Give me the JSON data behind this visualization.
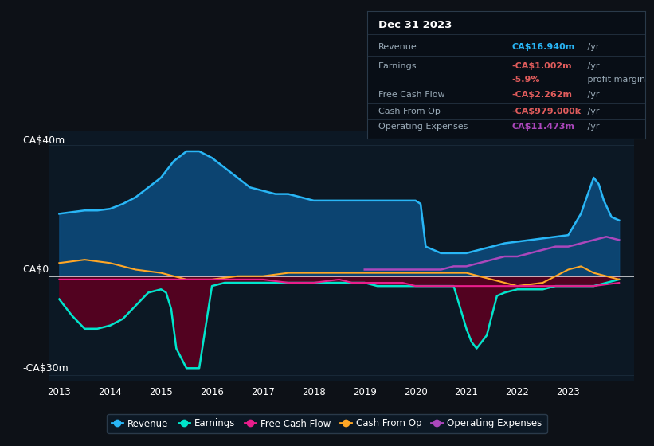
{
  "bg_color": "#0d1117",
  "plot_bg_color": "#0c1824",
  "title": "Dec 31 2023",
  "ylim": [
    -32,
    44
  ],
  "xlim": [
    2012.8,
    2024.3
  ],
  "revenue": {
    "x": [
      2013.0,
      2013.25,
      2013.5,
      2013.75,
      2014.0,
      2014.25,
      2014.5,
      2014.75,
      2015.0,
      2015.25,
      2015.5,
      2015.75,
      2016.0,
      2016.25,
      2016.5,
      2016.75,
      2017.0,
      2017.25,
      2017.5,
      2017.75,
      2018.0,
      2018.25,
      2018.5,
      2018.75,
      2019.0,
      2019.25,
      2019.5,
      2019.75,
      2020.0,
      2020.1,
      2020.2,
      2020.5,
      2020.75,
      2021.0,
      2021.25,
      2021.5,
      2021.75,
      2022.0,
      2022.25,
      2022.5,
      2022.75,
      2023.0,
      2023.25,
      2023.5,
      2023.6,
      2023.7,
      2023.85,
      2024.0
    ],
    "y": [
      19,
      19.5,
      20,
      20,
      20.5,
      22,
      24,
      27,
      30,
      35,
      38,
      38,
      36,
      33,
      30,
      27,
      26,
      25,
      25,
      24,
      23,
      23,
      23,
      23,
      23,
      23,
      23,
      23,
      23,
      22,
      9,
      7,
      7,
      7,
      8,
      9,
      10,
      10.5,
      11,
      11.5,
      12,
      12.5,
      19,
      30,
      28,
      23,
      18,
      17
    ],
    "color": "#29b6f6",
    "fill_color": "#0d4a7a",
    "fill_alpha": 0.9
  },
  "earnings": {
    "x": [
      2013.0,
      2013.25,
      2013.5,
      2013.75,
      2014.0,
      2014.25,
      2014.5,
      2014.75,
      2015.0,
      2015.1,
      2015.2,
      2015.3,
      2015.5,
      2015.75,
      2016.0,
      2016.25,
      2016.5,
      2016.75,
      2017.0,
      2017.25,
      2017.5,
      2017.75,
      2018.0,
      2018.25,
      2018.5,
      2018.75,
      2019.0,
      2019.25,
      2019.5,
      2019.75,
      2020.0,
      2020.25,
      2020.5,
      2020.75,
      2021.0,
      2021.1,
      2021.2,
      2021.4,
      2021.6,
      2021.75,
      2022.0,
      2022.25,
      2022.5,
      2022.75,
      2023.0,
      2023.25,
      2023.5,
      2023.75,
      2024.0
    ],
    "y": [
      -7,
      -12,
      -16,
      -16,
      -15,
      -13,
      -9,
      -5,
      -4,
      -5,
      -10,
      -22,
      -28,
      -28,
      -3,
      -2,
      -2,
      -2,
      -2,
      -2,
      -2,
      -2,
      -2,
      -2,
      -2,
      -2,
      -2,
      -3,
      -3,
      -3,
      -3,
      -3,
      -3,
      -3,
      -16,
      -20,
      -22,
      -18,
      -6,
      -5,
      -4,
      -4,
      -4,
      -3,
      -3,
      -3,
      -3,
      -2,
      -1
    ],
    "color": "#00e5cc",
    "fill_color": "#5a0020",
    "fill_alpha": 0.9
  },
  "cash_from_op": {
    "x": [
      2013.0,
      2013.5,
      2014.0,
      2014.5,
      2015.0,
      2015.5,
      2016.0,
      2016.5,
      2017.0,
      2017.5,
      2018.0,
      2018.5,
      2019.0,
      2019.5,
      2020.0,
      2020.5,
      2021.0,
      2021.5,
      2022.0,
      2022.5,
      2022.75,
      2023.0,
      2023.25,
      2023.5,
      2023.75,
      2024.0
    ],
    "y": [
      4,
      5,
      4,
      2,
      1,
      -1,
      -1,
      0,
      0,
      1,
      1,
      1,
      1,
      1,
      1,
      1,
      1,
      -1,
      -3,
      -2,
      0,
      2,
      3,
      1,
      0,
      -1
    ],
    "color": "#ffa726"
  },
  "free_cash_flow": {
    "x": [
      2013.0,
      2013.5,
      2014.0,
      2014.5,
      2015.0,
      2015.5,
      2016.0,
      2016.5,
      2017.0,
      2017.5,
      2018.0,
      2018.5,
      2018.75,
      2019.0,
      2019.25,
      2019.5,
      2019.75,
      2020.0,
      2020.5,
      2021.0,
      2021.5,
      2022.0,
      2022.5,
      2023.0,
      2023.5,
      2024.0
    ],
    "y": [
      -1,
      -1,
      -1,
      -1,
      -1,
      -1,
      -1,
      -1,
      -1,
      -2,
      -2,
      -1,
      -2,
      -2,
      -2,
      -2,
      -2,
      -3,
      -3,
      -3,
      -3,
      -3,
      -3,
      -3,
      -3,
      -2
    ],
    "color": "#e91e8c"
  },
  "operating_expenses": {
    "x": [
      2019.0,
      2019.25,
      2019.5,
      2019.75,
      2020.0,
      2020.25,
      2020.5,
      2020.75,
      2021.0,
      2021.25,
      2021.5,
      2021.75,
      2022.0,
      2022.25,
      2022.5,
      2022.75,
      2023.0,
      2023.25,
      2023.5,
      2023.75,
      2024.0
    ],
    "y": [
      2,
      2,
      2,
      2,
      2,
      2,
      2,
      3,
      3,
      4,
      5,
      6,
      6,
      7,
      8,
      9,
      9,
      10,
      11,
      12,
      11
    ],
    "color": "#ab47bc"
  },
  "legend": [
    {
      "label": "Revenue",
      "color": "#29b6f6"
    },
    {
      "label": "Earnings",
      "color": "#00e5cc"
    },
    {
      "label": "Free Cash Flow",
      "color": "#e91e8c"
    },
    {
      "label": "Cash From Op",
      "color": "#ffa726"
    },
    {
      "label": "Operating Expenses",
      "color": "#ab47bc"
    }
  ],
  "table_rows": [
    {
      "label": "Revenue",
      "value": "CA$16.940m",
      "suffix": " /yr",
      "value_color": "#29b6f6"
    },
    {
      "label": "Earnings",
      "value": "-CA$1.002m",
      "suffix": " /yr",
      "value_color": "#e05c5c"
    },
    {
      "label": "",
      "value": "-5.9%",
      "suffix": " profit margin",
      "value_color": "#e05c5c"
    },
    {
      "label": "Free Cash Flow",
      "value": "-CA$2.262m",
      "suffix": " /yr",
      "value_color": "#e05c5c"
    },
    {
      "label": "Cash From Op",
      "value": "-CA$979.000k",
      "suffix": " /yr",
      "value_color": "#e05c5c"
    },
    {
      "label": "Operating Expenses",
      "value": "CA$11.473m",
      "suffix": " /yr",
      "value_color": "#ab47bc"
    }
  ]
}
